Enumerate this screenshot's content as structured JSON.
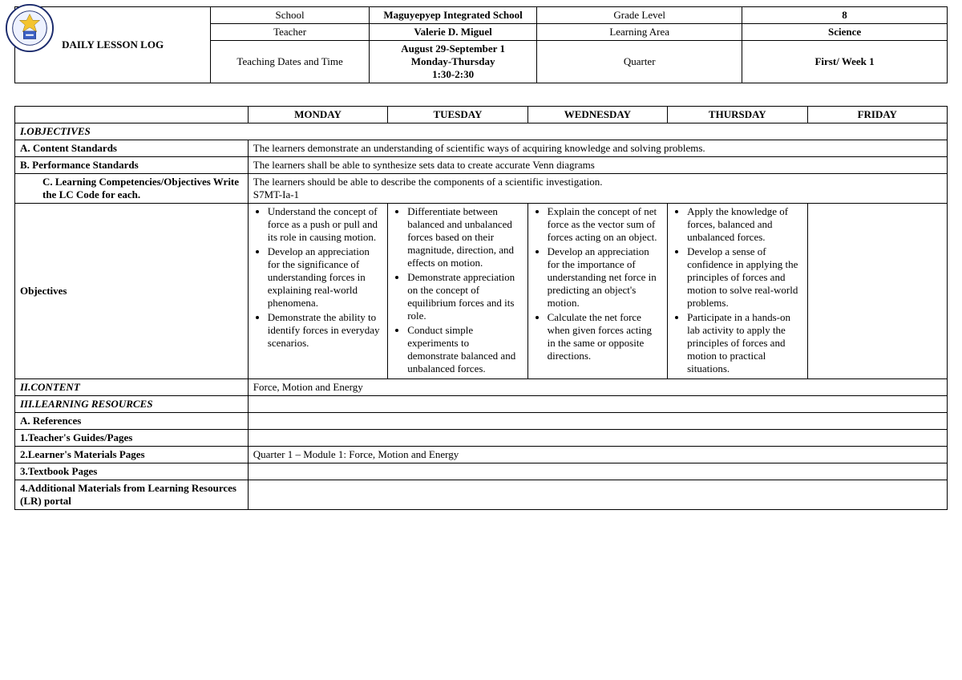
{
  "logo": {
    "label": "DepEd Seal"
  },
  "header": {
    "title": "DAILY LESSON LOG",
    "rows": [
      {
        "l1": "School",
        "v1": "Maguyepyep Integrated School",
        "l2": "Grade Level",
        "v2": "8"
      },
      {
        "l1": "Teacher",
        "v1": "Valerie D. Miguel",
        "l2": "Learning Area",
        "v2": "Science"
      },
      {
        "l1": "Teaching Dates and Time",
        "v1": "August 29-September 1\nMonday-Thursday\n1:30-2:30",
        "l2": "Quarter",
        "v2": "First/ Week 1"
      }
    ]
  },
  "days": [
    "MONDAY",
    "TUESDAY",
    "WEDNESDAY",
    "THURSDAY",
    "FRIDAY"
  ],
  "sections": {
    "objectives_head": "I.OBJECTIVES",
    "content_standards_label": "A.  Content Standards",
    "content_standards": "The learners demonstrate an understanding of scientific ways of acquiring knowledge and solving problems.",
    "performance_standards_label": "B.  Performance Standards",
    "performance_standards": "The learners shall be able to synthesize sets data to create accurate Venn diagrams",
    "learning_comp_label": "C.  Learning Competencies/Objectives Write the LC Code for each.",
    "learning_comp_line1": " The learners should be able to describe the components of a scientific investigation.",
    "learning_comp_code": "S7MT-Ia-1",
    "objectives_row_label": "Objectives",
    "objectives": {
      "mon": [
        "Understand the concept of force as a push or pull and its role in causing motion.",
        "Develop an appreciation for the significance of understanding forces in explaining real-world phenomena.",
        "Demonstrate the ability to identify forces in everyday scenarios."
      ],
      "tue": [
        "Differentiate between balanced and unbalanced forces based on their magnitude, direction, and effects on motion.",
        "Demonstrate appreciation on the concept of equilibrium forces and its role.",
        "Conduct simple experiments to demonstrate balanced and unbalanced forces."
      ],
      "wed": [
        "Explain the concept of net force as the vector sum of forces acting on an object.",
        "Develop an appreciation for the importance of understanding net force in predicting an object's motion.",
        "Calculate the net force when given forces acting in the same or opposite directions."
      ],
      "thu": [
        "Apply the knowledge of forces, balanced and unbalanced forces.",
        "Develop a sense of confidence in applying the principles of forces and motion to solve real-world problems.",
        "Participate in a hands-on lab activity to apply the principles of forces and motion to practical situations."
      ]
    },
    "content_label": "II.CONTENT",
    "content_value": "Force, Motion and Energy",
    "resources_label": "III.LEARNING RESOURCES",
    "refs_label": "A.  References",
    "tg_label": "1.Teacher's Guides/Pages",
    "lm_label": "2.Learner's Materials Pages",
    "lm_value": "Quarter 1 – Module 1: Force, Motion and Energy",
    "tb_label": "3.Textbook Pages",
    "addl_label": "4.Additional Materials from Learning Resources (LR) portal"
  }
}
